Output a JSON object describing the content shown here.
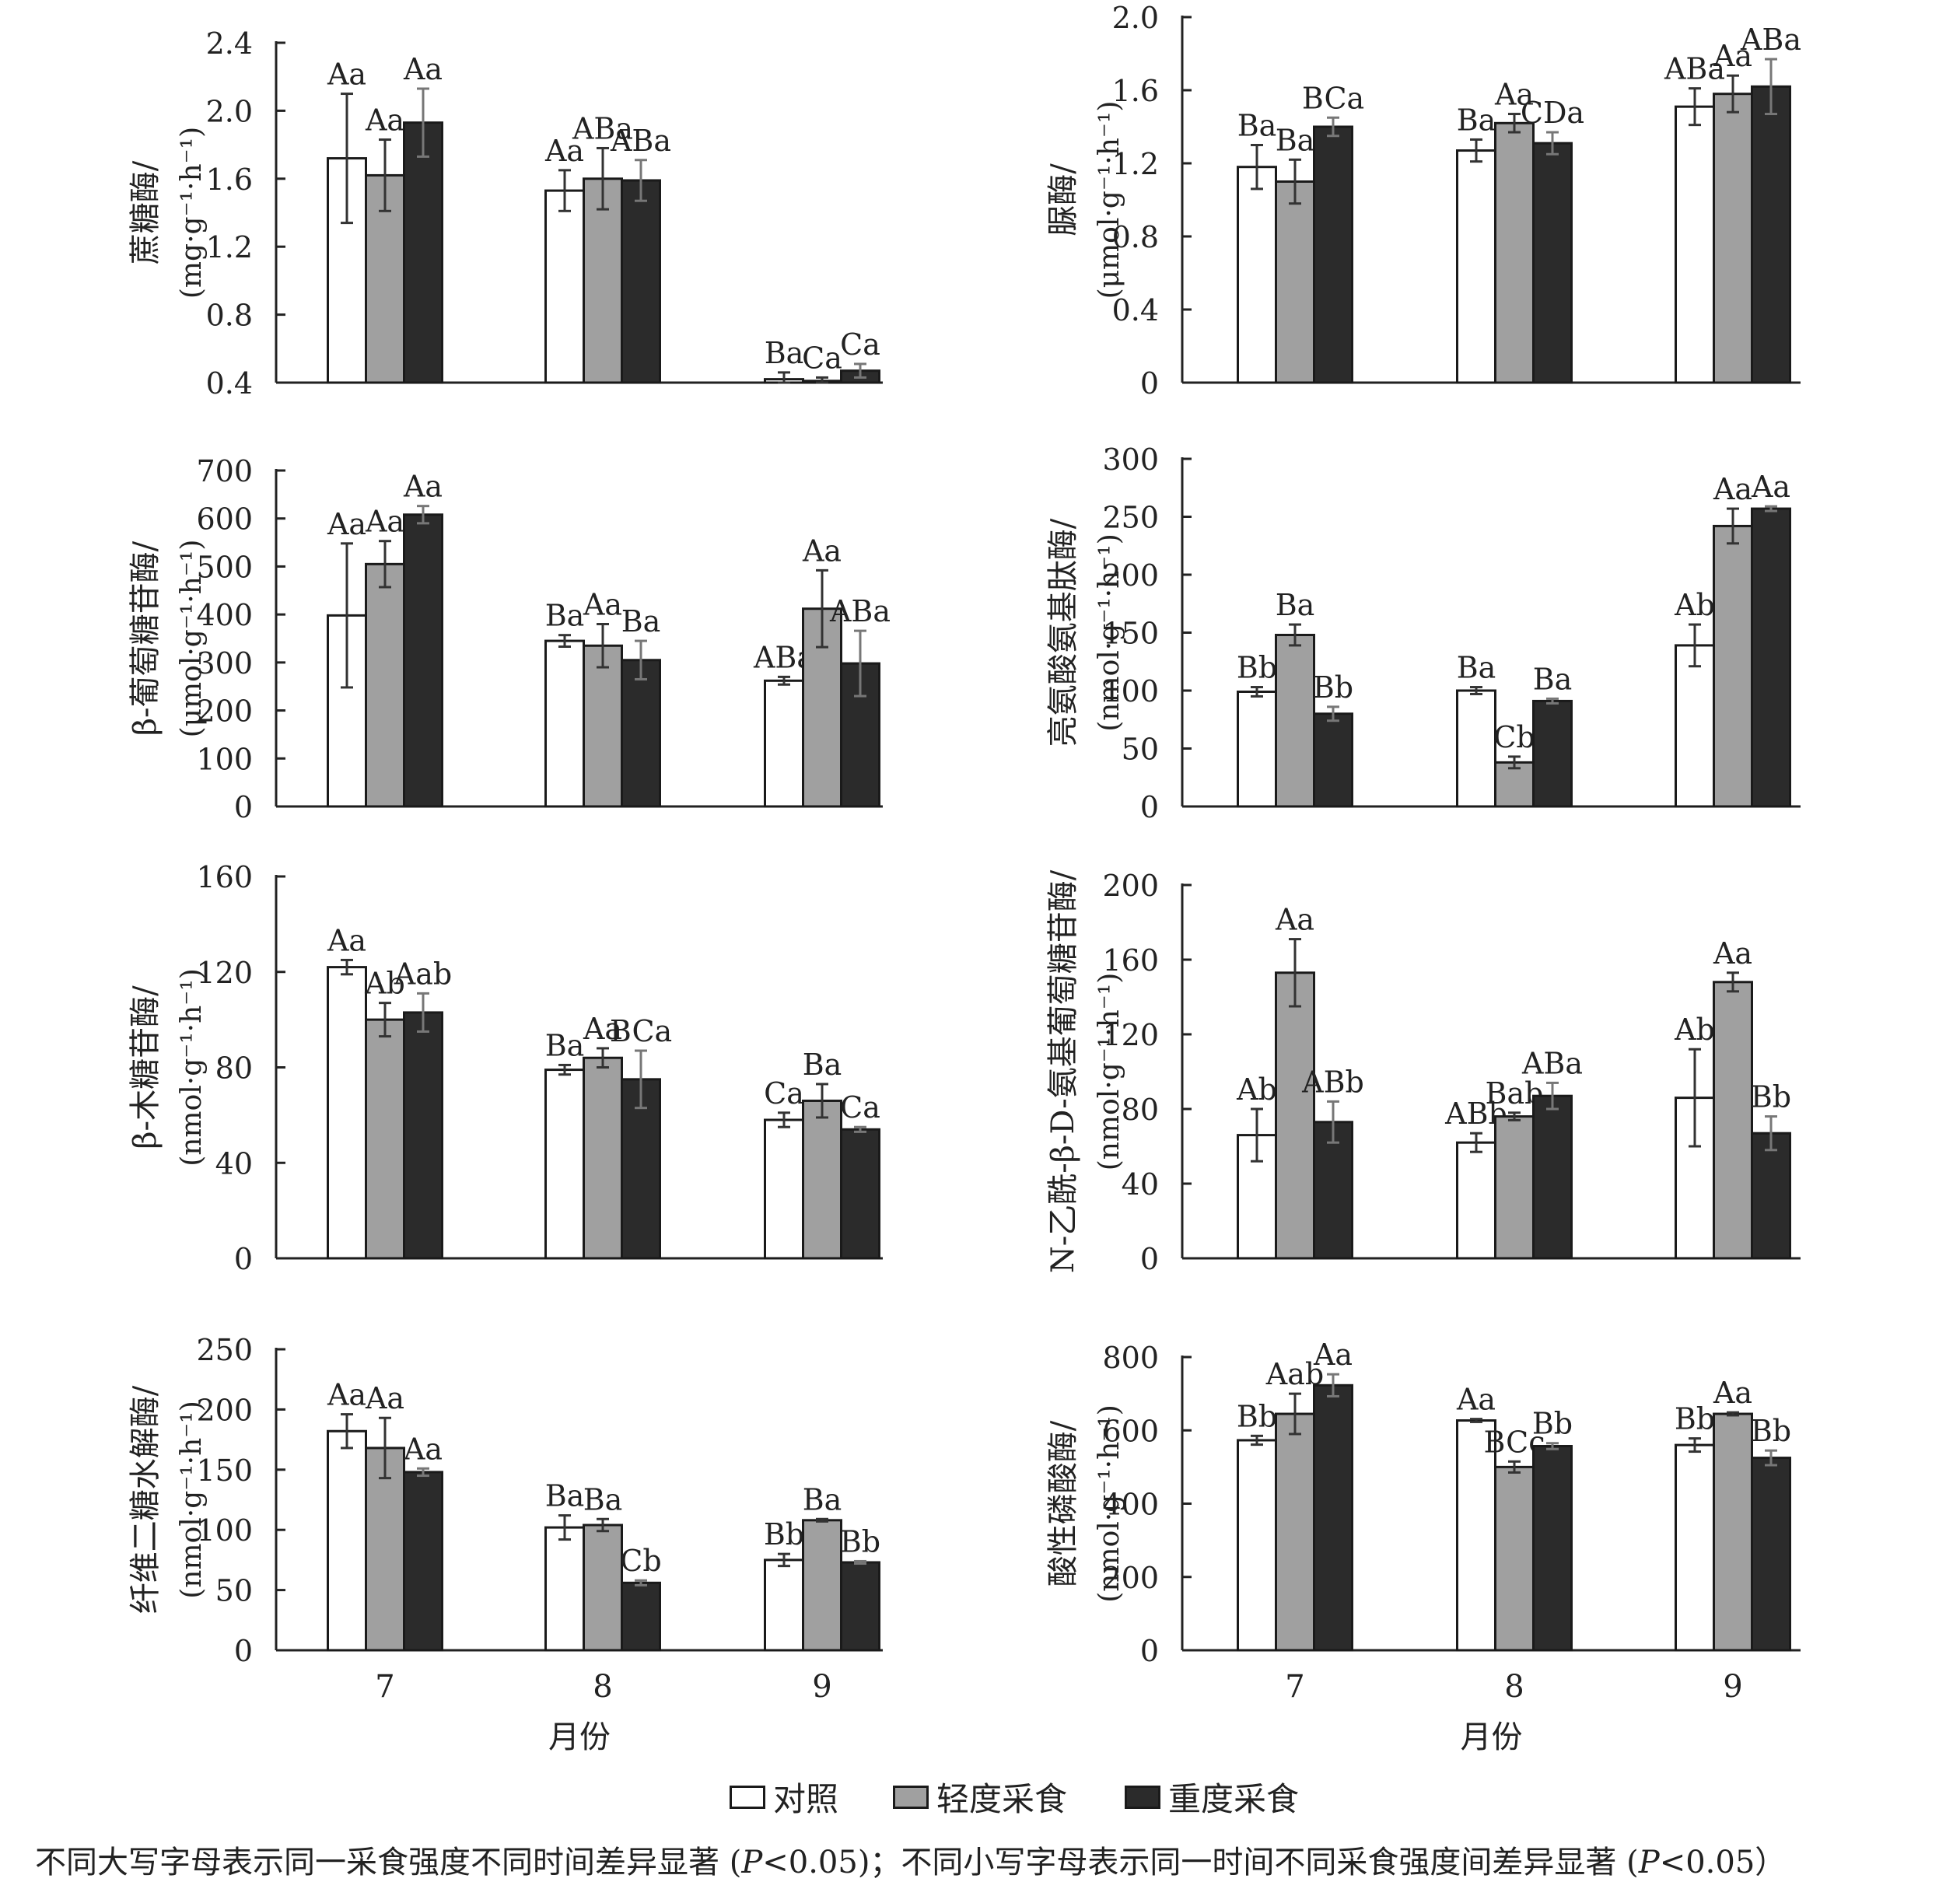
{
  "legend": {
    "items": [
      {
        "label": "对照",
        "color": "#ffffff"
      },
      {
        "label": "轻度采食",
        "color": "#a0a0a0"
      },
      {
        "label": "重度采食",
        "color": "#2b2b2b"
      }
    ]
  },
  "footnote": {
    "part1": "不同大写字母表示同一采食强度不同时间差异显著 (",
    "p": "P",
    "part2": "<0.05)；不同小写字母表示同一时间不同采食强度间差异显著 (",
    "part3": "<0.05）"
  },
  "chart_data": [
    {
      "type": "bar",
      "ylabel": "蔗糖酶/",
      "yunit": "(mg·g⁻¹·h⁻¹)",
      "categories": [
        "7",
        "8",
        "9"
      ],
      "xlabel": "",
      "ylim": [
        0.4,
        2.4
      ],
      "yticks": [
        "0.4",
        "0.8",
        "1.2",
        "1.6",
        "2.0",
        "2.4"
      ],
      "series": [
        {
          "name": "对照",
          "values": [
            1.72,
            1.53,
            0.42
          ],
          "errors": [
            0.38,
            0.12,
            0.04
          ],
          "labels": [
            "Aa",
            "Aa",
            "Ba"
          ]
        },
        {
          "name": "轻度采食",
          "values": [
            1.62,
            1.6,
            0.41
          ],
          "errors": [
            0.21,
            0.18,
            0.02
          ],
          "labels": [
            "Aa",
            "ABa",
            "Ca"
          ]
        },
        {
          "name": "重度采食",
          "values": [
            1.93,
            1.59,
            0.47
          ],
          "errors": [
            0.2,
            0.12,
            0.04
          ],
          "labels": [
            "Aa",
            "ABa",
            "Ca"
          ]
        }
      ]
    },
    {
      "type": "bar",
      "ylabel": "脲酶/",
      "yunit": "(μmol·g⁻¹·h⁻¹)",
      "categories": [
        "7",
        "8",
        "9"
      ],
      "xlabel": "",
      "ylim": [
        0,
        2.0
      ],
      "yticks": [
        "0",
        "0.4",
        "0.8",
        "1.2",
        "1.6",
        "2.0"
      ],
      "series": [
        {
          "name": "对照",
          "values": [
            1.18,
            1.27,
            1.51
          ],
          "errors": [
            0.12,
            0.06,
            0.1
          ],
          "labels": [
            "Ba",
            "Ba",
            "ABa"
          ]
        },
        {
          "name": "轻度采食",
          "values": [
            1.1,
            1.42,
            1.58
          ],
          "errors": [
            0.12,
            0.05,
            0.1
          ],
          "labels": [
            "Ba",
            "Aa",
            "Aa"
          ]
        },
        {
          "name": "重度采食",
          "values": [
            1.4,
            1.31,
            1.62
          ],
          "errors": [
            0.05,
            0.06,
            0.15
          ],
          "labels": [
            "BCa",
            "CDa",
            "ABa"
          ]
        }
      ]
    },
    {
      "type": "bar",
      "ylabel": "β-葡萄糖苷酶/",
      "yunit": "(μmol·g⁻¹·h⁻¹)",
      "categories": [
        "7",
        "8",
        "9"
      ],
      "xlabel": "",
      "ylim": [
        0,
        700
      ],
      "yticks": [
        "0",
        "100",
        "200",
        "300",
        "400",
        "500",
        "600",
        "700"
      ],
      "series": [
        {
          "name": "对照",
          "values": [
            398,
            345,
            262
          ],
          "errors": [
            150,
            12,
            8
          ],
          "labels": [
            "Aa",
            "Ba",
            "ABa"
          ]
        },
        {
          "name": "轻度采食",
          "values": [
            505,
            335,
            412
          ],
          "errors": [
            48,
            45,
            80
          ],
          "labels": [
            "Aa",
            "Aa",
            "Aa"
          ]
        },
        {
          "name": "重度采食",
          "values": [
            608,
            305,
            298
          ],
          "errors": [
            18,
            40,
            68
          ],
          "labels": [
            "Aa",
            "Ba",
            "ABa"
          ]
        }
      ]
    },
    {
      "type": "bar",
      "ylabel": "亮氨酸氨基肽酶/",
      "yunit": "(nmol·g⁻¹·h⁻¹)",
      "categories": [
        "7",
        "8",
        "9"
      ],
      "xlabel": "",
      "ylim": [
        0,
        300
      ],
      "yticks": [
        "0",
        "50",
        "100",
        "150",
        "200",
        "250",
        "300"
      ],
      "series": [
        {
          "name": "对照",
          "values": [
            99,
            100,
            139
          ],
          "errors": [
            4,
            3,
            18
          ],
          "labels": [
            "Bb",
            "Ba",
            "Ab"
          ]
        },
        {
          "name": "轻度采食",
          "values": [
            148,
            38,
            242
          ],
          "errors": [
            9,
            5,
            15
          ],
          "labels": [
            "Ba",
            "Cb",
            "Aa"
          ]
        },
        {
          "name": "重度采食",
          "values": [
            80,
            91,
            257
          ],
          "errors": [
            6,
            2,
            2
          ],
          "labels": [
            "Bb",
            "Ba",
            "Aa"
          ]
        }
      ]
    },
    {
      "type": "bar",
      "ylabel": "β-木糖苷酶/",
      "yunit": "(nmol·g⁻¹·h⁻¹)",
      "categories": [
        "7",
        "8",
        "9"
      ],
      "xlabel": "",
      "ylim": [
        0,
        160
      ],
      "yticks": [
        "0",
        "40",
        "80",
        "120",
        "160"
      ],
      "series": [
        {
          "name": "对照",
          "values": [
            122,
            79,
            58
          ],
          "errors": [
            3,
            2,
            3
          ],
          "labels": [
            "Aa",
            "Ba",
            "Ca"
          ]
        },
        {
          "name": "轻度采食",
          "values": [
            100,
            84,
            66
          ],
          "errors": [
            7,
            4,
            7
          ],
          "labels": [
            "Ab",
            "Aa",
            "Ba"
          ]
        },
        {
          "name": "重度采食",
          "values": [
            103,
            75,
            54
          ],
          "errors": [
            8,
            12,
            1
          ],
          "labels": [
            "Aab",
            "BCa",
            "Ca"
          ]
        }
      ]
    },
    {
      "type": "bar",
      "ylabel": "N-乙酰-β-D-氨基葡萄糖苷酶/",
      "yunit": "(nmol·g⁻¹·h⁻¹)",
      "categories": [
        "7",
        "8",
        "9"
      ],
      "xlabel": "",
      "ylim": [
        0,
        200
      ],
      "yticks": [
        "0",
        "40",
        "80",
        "120",
        "160",
        "200"
      ],
      "series": [
        {
          "name": "对照",
          "values": [
            66,
            62,
            86
          ],
          "errors": [
            14,
            5,
            26
          ],
          "labels": [
            "Ab",
            "ABb",
            "Ab"
          ]
        },
        {
          "name": "轻度采食",
          "values": [
            153,
            76,
            148
          ],
          "errors": [
            18,
            2,
            5
          ],
          "labels": [
            "Aa",
            "Bab",
            "Aa"
          ]
        },
        {
          "name": "重度采食",
          "values": [
            73,
            87,
            67
          ],
          "errors": [
            11,
            7,
            9
          ],
          "labels": [
            "ABb",
            "ABa",
            "Bb"
          ]
        }
      ]
    },
    {
      "type": "bar",
      "ylabel": "纤维二糖水解酶/",
      "yunit": "(nmol·g⁻¹·h⁻¹)",
      "categories": [
        "7",
        "8",
        "9"
      ],
      "xlabel": "月份",
      "ylim": [
        0,
        250
      ],
      "yticks": [
        "0",
        "50",
        "100",
        "150",
        "200",
        "250"
      ],
      "series": [
        {
          "name": "对照",
          "values": [
            182,
            102,
            75
          ],
          "errors": [
            14,
            10,
            5
          ],
          "labels": [
            "Aa",
            "Ba",
            "Bb"
          ]
        },
        {
          "name": "轻度采食",
          "values": [
            168,
            104,
            108
          ],
          "errors": [
            25,
            5,
            1
          ],
          "labels": [
            "Aa",
            "Ba",
            "Ba"
          ]
        },
        {
          "name": "重度采食",
          "values": [
            148,
            56,
            73
          ],
          "errors": [
            3,
            2,
            1
          ],
          "labels": [
            "Aa",
            "Cb",
            "Bb"
          ]
        }
      ]
    },
    {
      "type": "bar",
      "ylabel": "酸性磷酸酶/",
      "yunit": "(nmol·g⁻¹·h⁻¹)",
      "categories": [
        "7",
        "8",
        "9"
      ],
      "xlabel": "月份",
      "ylim": [
        0,
        800
      ],
      "yticks": [
        "0",
        "200",
        "400",
        "600",
        "800"
      ],
      "series": [
        {
          "name": "对照",
          "values": [
            573,
            627,
            560
          ],
          "errors": [
            12,
            4,
            18
          ],
          "labels": [
            "Bb",
            "Aa",
            "Bb"
          ]
        },
        {
          "name": "轻度采食",
          "values": [
            645,
            500,
            645
          ],
          "errors": [
            55,
            15,
            4
          ],
          "labels": [
            "Aab",
            "BCc",
            "Aa"
          ]
        },
        {
          "name": "重度采食",
          "values": [
            723,
            557,
            525
          ],
          "errors": [
            30,
            8,
            20
          ],
          "labels": [
            "Aa",
            "Bb",
            "Bb"
          ]
        }
      ]
    }
  ]
}
